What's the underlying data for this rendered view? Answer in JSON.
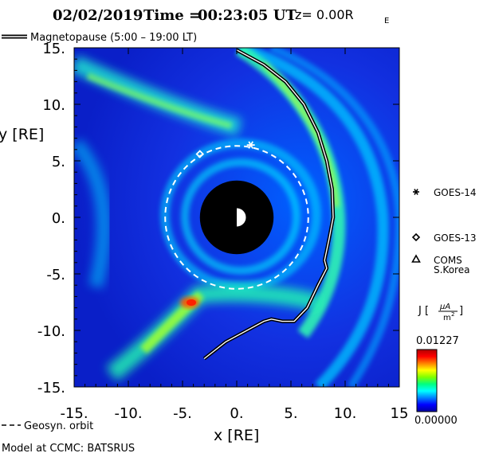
{
  "header": {
    "date": "02/02/2019",
    "time_label": "Time =",
    "time_value": "00:23:05 UT",
    "z_label": "z= 0.00R",
    "z_sub": "E"
  },
  "legend_top": {
    "label": "Magnetopause (5:00 – 19:00 LT)"
  },
  "footer": {
    "geosyn_label": "Geosyn. orbit",
    "credit": "Model at CCMC: BATSRUS"
  },
  "satellites": [
    {
      "name": "GOES-14",
      "marker": "asterisk",
      "x": 1.3,
      "y": 6.4
    },
    {
      "name": "GOES-13",
      "marker": "diamond",
      "x": -3.4,
      "y": 5.6
    },
    {
      "name": "COMS",
      "name2": "S.Korea",
      "marker": "triangle"
    }
  ],
  "colorbar": {
    "label_main": "J [",
    "unit_num": "μA",
    "unit_den": "m",
    "unit_den_sup": "2",
    "label_close": "]",
    "max": "0.01227",
    "min": "0.00000",
    "colors": [
      "#0000a0",
      "#0000ff",
      "#0080ff",
      "#00ffff",
      "#00ff80",
      "#80ff00",
      "#ffff00",
      "#ff8000",
      "#ff0000",
      "#b00000"
    ]
  },
  "chart_data": {
    "type": "heatmap",
    "title": "02/02/2019 Time = 00:23:05 UT z= 0.00RE",
    "xlabel": "x [RE]",
    "ylabel": "y [RE]",
    "xlim": [
      -15,
      15
    ],
    "ylim": [
      -15,
      15
    ],
    "x_ticks": [
      "-15.",
      "-10.",
      "-5.",
      "0.",
      "5.",
      "10.",
      "15"
    ],
    "y_ticks": [
      "15.",
      "10.",
      "5.",
      "0.",
      "-5.",
      "-10.",
      "-15."
    ],
    "x_tick_values": [
      -15,
      -10,
      -5,
      0,
      5,
      10,
      15
    ],
    "y_tick_values": [
      15,
      10,
      5,
      0,
      -5,
      -10,
      -15
    ],
    "earth_radius": 3.4,
    "geosync_radius": 6.6,
    "magnetopause": [
      [
        0,
        14.8
      ],
      [
        2.5,
        13.5
      ],
      [
        4.5,
        12
      ],
      [
        6.2,
        10
      ],
      [
        7.5,
        7.5
      ],
      [
        8.3,
        5
      ],
      [
        8.8,
        2.5
      ],
      [
        8.9,
        0
      ],
      [
        8.5,
        -2
      ],
      [
        8.1,
        -3.8
      ],
      [
        8.3,
        -4.5
      ],
      [
        7.5,
        -6
      ],
      [
        6.5,
        -8
      ],
      [
        5.3,
        -9.2
      ],
      [
        4.2,
        -9.2
      ],
      [
        3.2,
        -9.0
      ],
      [
        2.5,
        -9.2
      ],
      [
        -1,
        -11
      ],
      [
        -3,
        -12.5
      ]
    ]
  }
}
